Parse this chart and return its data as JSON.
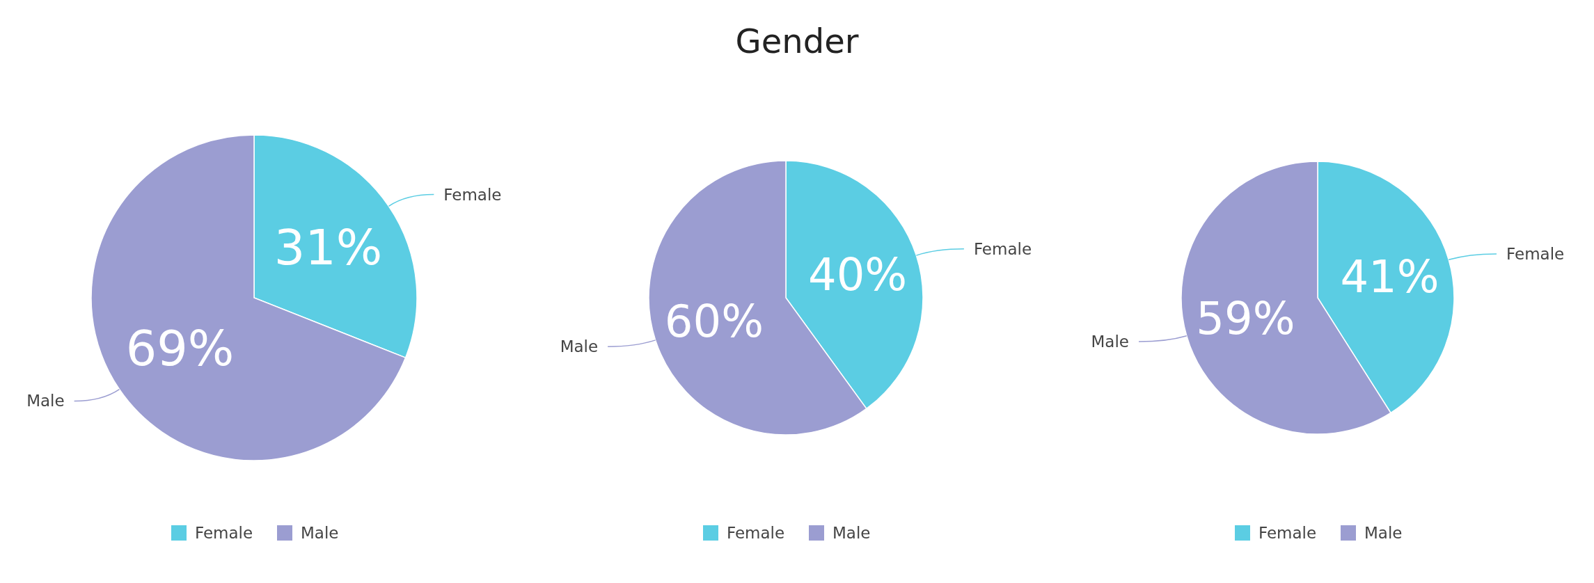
{
  "chart_data": [
    {
      "type": "pie",
      "title": "Gender",
      "categories": [
        "Female",
        "Male"
      ],
      "values": [
        31,
        69
      ],
      "colors": [
        "#5bcde3",
        "#9b9dd1"
      ],
      "value_labels": [
        "31%",
        "69%"
      ],
      "legend": "bottom"
    },
    {
      "type": "pie",
      "categories": [
        "Female",
        "Male"
      ],
      "values": [
        40,
        60
      ],
      "colors": [
        "#5bcde3",
        "#9b9dd1"
      ],
      "value_labels": [
        "40%",
        "60%"
      ],
      "legend": "bottom"
    },
    {
      "type": "pie",
      "categories": [
        "Female",
        "Male"
      ],
      "values": [
        41,
        59
      ],
      "colors": [
        "#5bcde3",
        "#9b9dd1"
      ],
      "value_labels": [
        "41%",
        "59%"
      ],
      "legend": "bottom"
    }
  ]
}
